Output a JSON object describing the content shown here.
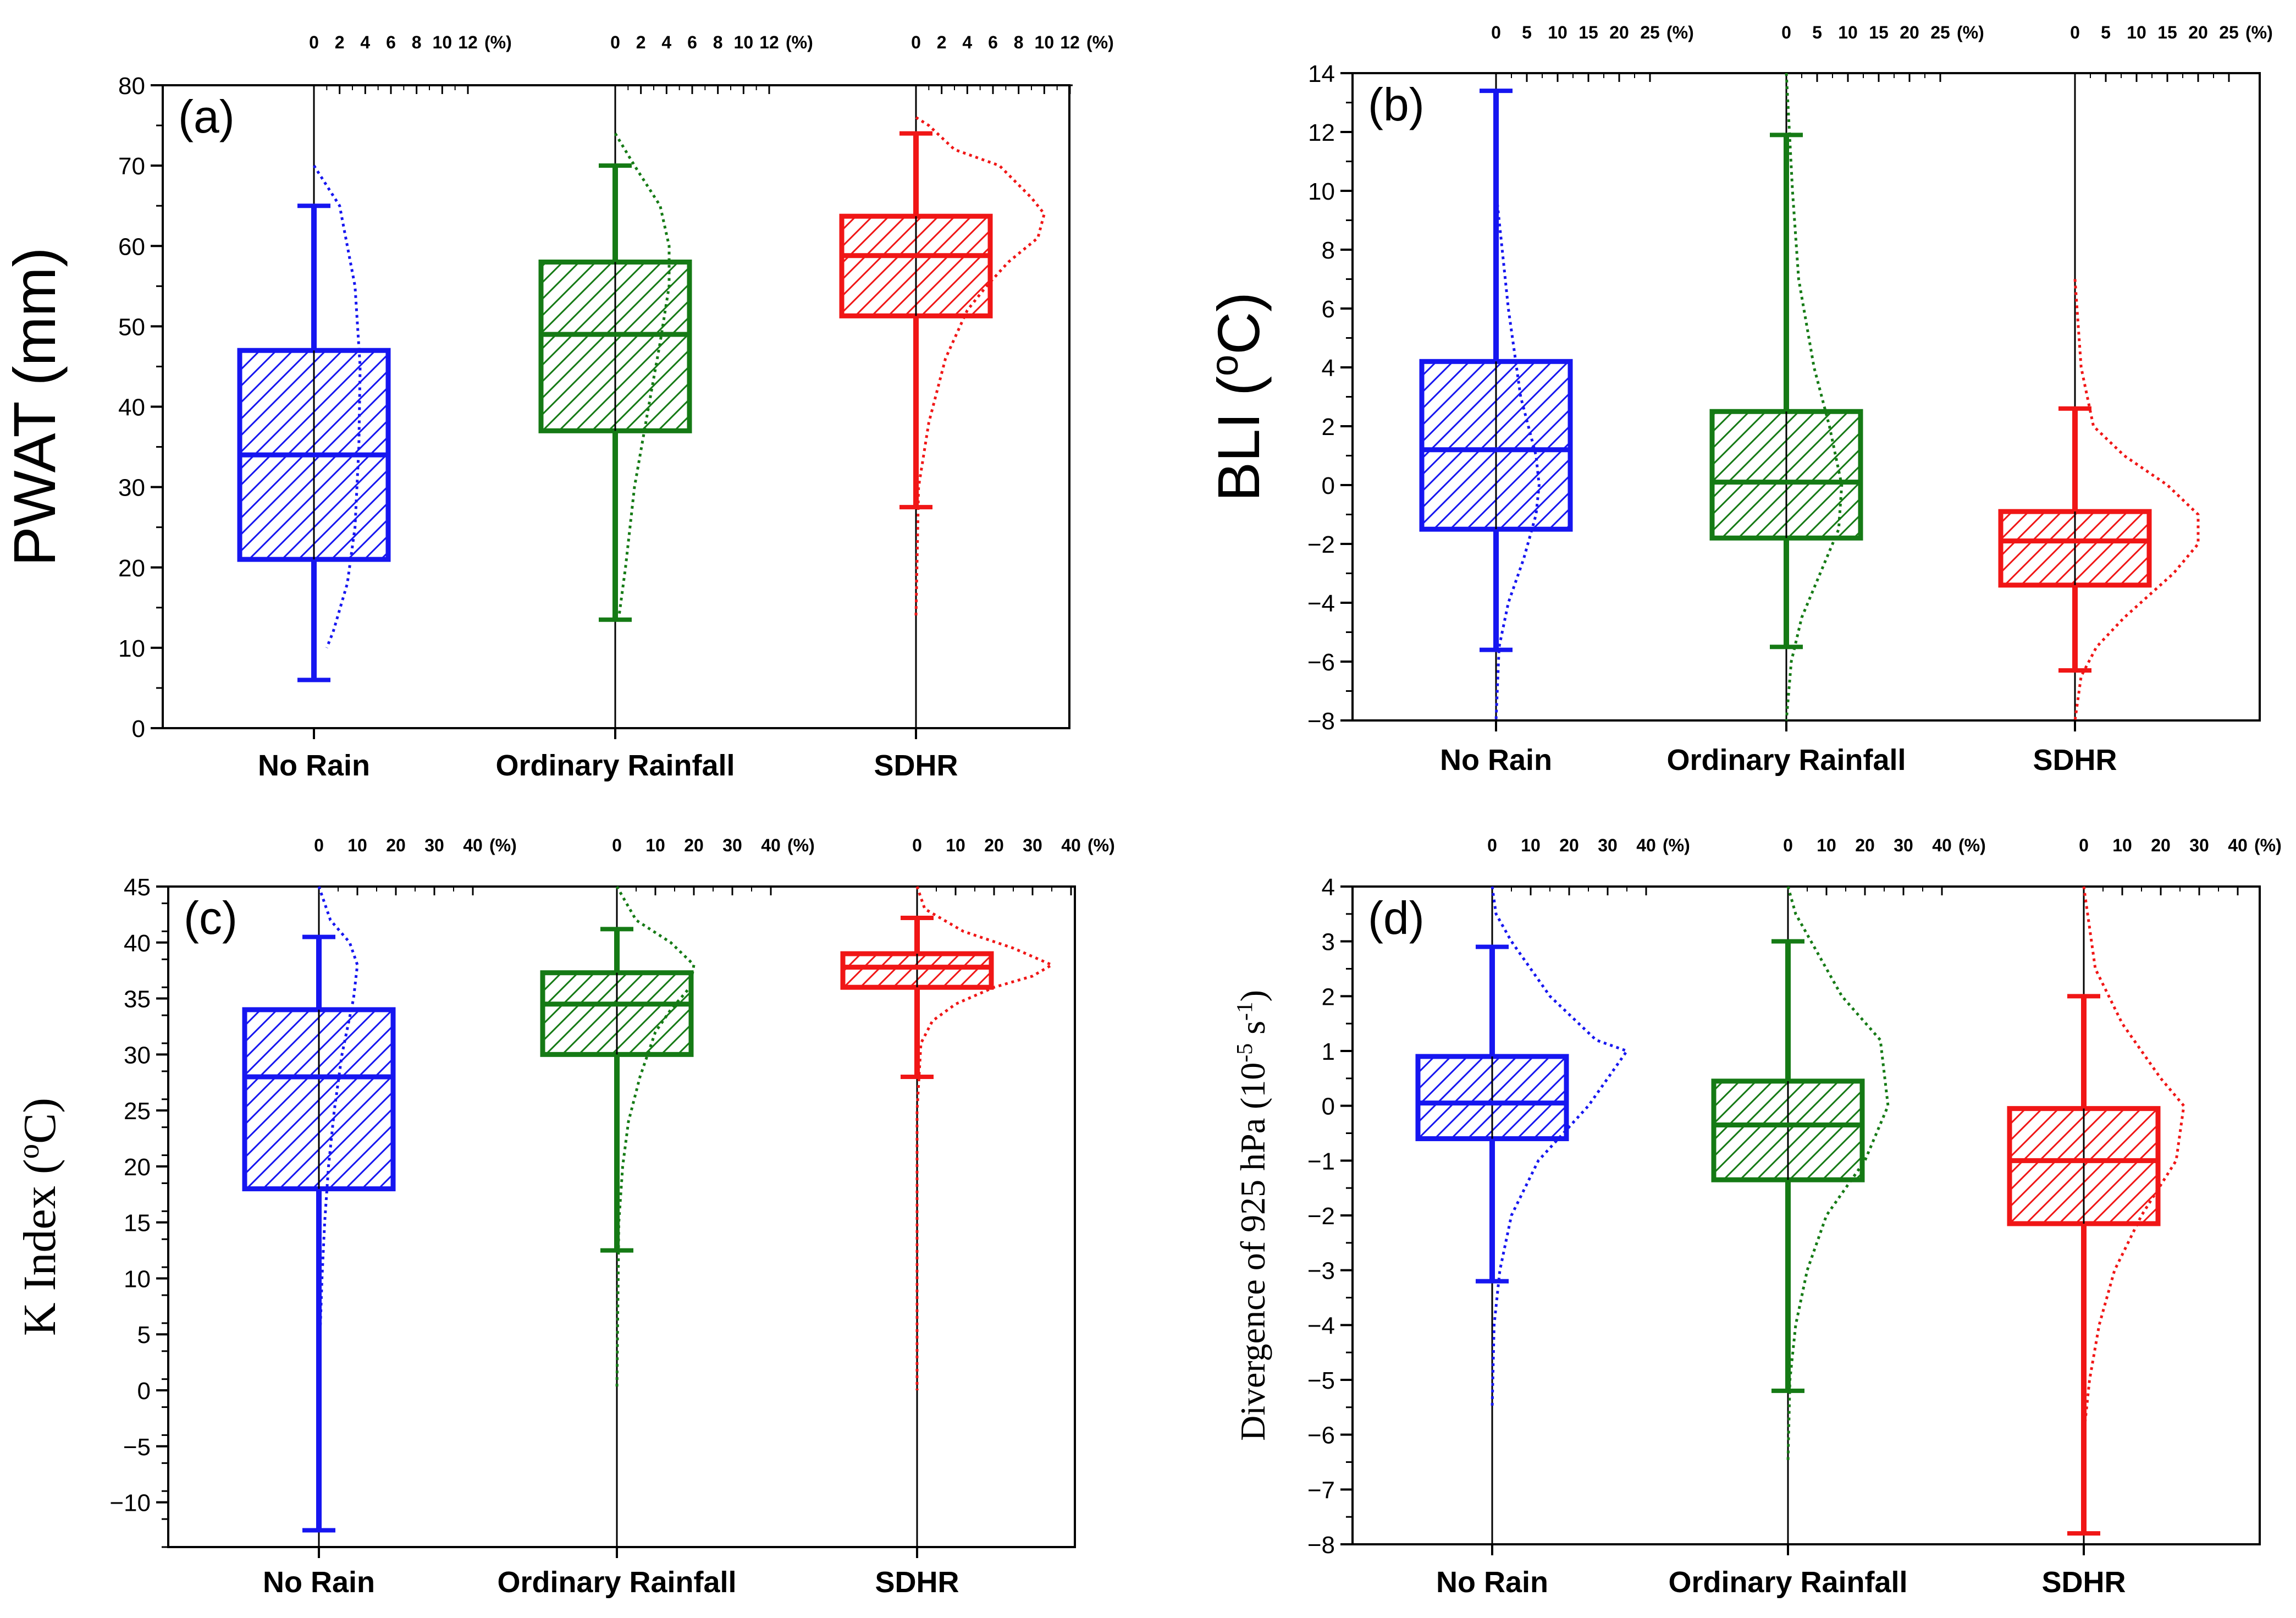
{
  "colors": {
    "No Rain": "#1616f0",
    "Ordinary Rainfall": "#157a15",
    "SDHR": "#f01616"
  },
  "chart_data": [
    {
      "type": "box",
      "panel": "(a)",
      "ylabel": "PWAT (mm)",
      "ylabel_style": "sans",
      "ylim": [
        0,
        80
      ],
      "yticks": [
        0,
        10,
        20,
        30,
        40,
        50,
        60,
        70,
        80
      ],
      "yminor": 5,
      "top_axis": {
        "max": 12,
        "ticks": [
          0,
          2,
          4,
          6,
          8,
          10,
          12
        ],
        "unit": "(%)"
      },
      "categories": [
        "No Rain",
        "Ordinary Rainfall",
        "SDHR"
      ],
      "boxes": [
        {
          "category": "No Rain",
          "whisker_low": 6,
          "q1": 21,
          "median": 34,
          "q3": 47,
          "whisker_high": 65,
          "range_low": 6,
          "range_high": 80
        },
        {
          "category": "Ordinary Rainfall",
          "whisker_low": 13.5,
          "q1": 37,
          "median": 49,
          "q3": 58,
          "whisker_high": 70,
          "range_low": 0,
          "range_high": 80
        },
        {
          "category": "SDHR",
          "whisker_low": 27.5,
          "q1": 51.3,
          "median": 58.8,
          "q3": 63.7,
          "whisker_high": 74,
          "range_low": 0,
          "range_high": 80
        }
      ],
      "distributions": [
        {
          "category": "No Rain",
          "values": [
            0,
            70,
            2,
            65,
            3.2,
            55,
            3.6,
            45,
            3.5,
            35,
            3.2,
            25,
            2.6,
            18,
            1.5,
            12,
            1.0,
            10
          ]
        },
        {
          "category": "Ordinary Rainfall",
          "values": [
            0,
            74,
            1.5,
            70,
            3.5,
            65,
            4.2,
            60,
            4.2,
            55,
            3.5,
            48,
            2.6,
            40,
            1.5,
            30,
            0.8,
            20,
            0.3,
            14
          ]
        },
        {
          "category": "SDHR",
          "values": [
            0,
            76,
            1.0,
            75,
            3.0,
            72,
            6.5,
            70,
            9.0,
            66,
            10.0,
            64,
            9.5,
            61,
            7.2,
            58,
            5.5,
            55,
            4.0,
            52,
            2.3,
            46,
            1.0,
            38,
            0.2,
            30,
            0,
            14
          ]
        }
      ]
    },
    {
      "type": "box",
      "panel": "(b)",
      "ylabel": "BLI (",
      "ylabel_sup": "o",
      "ylabel_tail": "C)",
      "ylabel_style": "sans",
      "ylim": [
        -8,
        14
      ],
      "yticks": [
        -8,
        -6,
        -4,
        -2,
        0,
        2,
        4,
        6,
        8,
        10,
        12,
        14
      ],
      "yminor": 1,
      "top_axis": {
        "max": 25,
        "ticks": [
          0,
          5,
          10,
          15,
          20,
          25
        ],
        "unit": "(%)"
      },
      "categories": [
        "No Rain",
        "Ordinary Rainfall",
        "SDHR"
      ],
      "boxes": [
        {
          "category": "No Rain",
          "whisker_low": -5.6,
          "q1": -1.5,
          "median": 1.2,
          "q3": 4.2,
          "whisker_high": 13.4,
          "range_low": -8,
          "range_high": 14
        },
        {
          "category": "Ordinary Rainfall",
          "whisker_low": -5.5,
          "q1": -1.8,
          "median": 0.1,
          "q3": 2.5,
          "whisker_high": 11.9,
          "range_low": -8,
          "range_high": 14
        },
        {
          "category": "SDHR",
          "whisker_low": -6.3,
          "q1": -3.4,
          "median": -1.9,
          "q3": -0.9,
          "whisker_high": 2.6,
          "range_low": -8,
          "range_high": 14
        }
      ],
      "distributions": [
        {
          "category": "No Rain",
          "values": [
            0,
            10,
            2,
            6,
            4,
            3,
            6.5,
            1,
            7,
            0,
            6.5,
            -1,
            4.5,
            -2.5,
            2,
            -4,
            0.5,
            -5.5,
            0,
            -8
          ]
        },
        {
          "category": "Ordinary Rainfall",
          "values": [
            0,
            14,
            1,
            10,
            2,
            7,
            4.5,
            4,
            7,
            2,
            9,
            0,
            8.5,
            -1.5,
            5.5,
            -3,
            2.5,
            -4.5,
            0.8,
            -6,
            0,
            -8
          ]
        },
        {
          "category": "SDHR",
          "values": [
            0,
            7,
            1,
            4,
            3,
            2,
            8,
            1,
            15,
            0,
            20,
            -1,
            20,
            -2,
            16,
            -3,
            8,
            -4.5,
            3.5,
            -5.5,
            1,
            -6.5,
            0,
            -8
          ]
        }
      ]
    },
    {
      "type": "box",
      "panel": "(c)",
      "ylabel": "K Index (",
      "ylabel_sup": "o",
      "ylabel_tail": "C)",
      "ylabel_style": "serif",
      "ylim": [
        -14,
        45
      ],
      "yticks": [
        -10,
        -5,
        0,
        5,
        10,
        15,
        20,
        25,
        30,
        35,
        40,
        45
      ],
      "yminor": 2.5,
      "top_axis": {
        "max": 40,
        "ticks": [
          0,
          10,
          20,
          30,
          40
        ],
        "unit": "(%)"
      },
      "categories": [
        "No Rain",
        "Ordinary Rainfall",
        "SDHR"
      ],
      "boxes": [
        {
          "category": "No Rain",
          "whisker_low": -12.5,
          "q1": 18,
          "median": 28,
          "q3": 34,
          "whisker_high": 40.5,
          "range_low": -14,
          "range_high": 45
        },
        {
          "category": "Ordinary Rainfall",
          "whisker_low": 12.5,
          "q1": 30,
          "median": 34.5,
          "q3": 37.3,
          "whisker_high": 41.2,
          "range_low": -14,
          "range_high": 45
        },
        {
          "category": "SDHR",
          "whisker_low": 28,
          "q1": 36,
          "median": 37.8,
          "q3": 39,
          "whisker_high": 42.2,
          "range_low": -14,
          "range_high": 45
        }
      ],
      "distributions": [
        {
          "category": "No Rain",
          "values": [
            0,
            45,
            3,
            42,
            8,
            40,
            10,
            38,
            9,
            35,
            6,
            30,
            4,
            25,
            2.5,
            20,
            1.5,
            15,
            0.8,
            10,
            0.3,
            5,
            0,
            0
          ]
        },
        {
          "category": "Ordinary Rainfall",
          "values": [
            0,
            45,
            5,
            42,
            14,
            40,
            20,
            38,
            19,
            36,
            14,
            34,
            10,
            32,
            6,
            28,
            3,
            24,
            1.5,
            20,
            0.5,
            15,
            0,
            0
          ]
        },
        {
          "category": "SDHR",
          "values": [
            0,
            45,
            2,
            43,
            12,
            41,
            25,
            39.5,
            35,
            38,
            30,
            37,
            20,
            36,
            10,
            34.5,
            4,
            33,
            1,
            31,
            0,
            25,
            0,
            0
          ]
        }
      ]
    },
    {
      "type": "box",
      "panel": "(d)",
      "ylabel": "Divergence of 925 hPa (10",
      "ylabel_sup": "-5",
      "ylabel_mid": " s",
      "ylabel_sup2": "-1",
      "ylabel_tail": ")",
      "ylabel_style": "serif-small",
      "ylim": [
        -8,
        4
      ],
      "yticks": [
        -8,
        -7,
        -6,
        -5,
        -4,
        -3,
        -2,
        -1,
        0,
        1,
        2,
        3,
        4
      ],
      "yminor": 0.5,
      "top_axis": {
        "max": 40,
        "ticks": [
          0,
          10,
          20,
          30,
          40
        ],
        "unit": "(%)"
      },
      "categories": [
        "No Rain",
        "Ordinary Rainfall",
        "SDHR"
      ],
      "boxes": [
        {
          "category": "No Rain",
          "whisker_low": -3.2,
          "q1": -0.6,
          "median": 0.05,
          "q3": 0.9,
          "whisker_high": 2.9,
          "range_low": -8,
          "range_high": 4
        },
        {
          "category": "Ordinary Rainfall",
          "whisker_low": -5.2,
          "q1": -1.35,
          "median": -0.35,
          "q3": 0.45,
          "whisker_high": 3,
          "range_low": -8,
          "range_high": 4
        },
        {
          "category": "SDHR",
          "whisker_low": -7.8,
          "q1": -2.15,
          "median": -1,
          "q3": -0.05,
          "whisker_high": 2,
          "range_low": -8,
          "range_high": 4
        }
      ],
      "distributions": [
        {
          "category": "No Rain",
          "values": [
            0,
            4,
            1,
            3.5,
            5,
            3,
            15,
            2,
            27,
            1.2,
            35,
            1,
            25,
            0,
            12,
            -1,
            5,
            -2,
            2,
            -3,
            0.5,
            -4,
            0,
            -5.5
          ]
        },
        {
          "category": "Ordinary Rainfall",
          "values": [
            0,
            4,
            2,
            3.5,
            6,
            3,
            14,
            2,
            24,
            1.2,
            26,
            0,
            20,
            -1,
            10,
            -2,
            5,
            -3,
            2,
            -4,
            0.5,
            -5,
            0,
            -6.5
          ]
        },
        {
          "category": "SDHR",
          "values": [
            0,
            4,
            1,
            3.5,
            3,
            2.5,
            10,
            1.5,
            20,
            0.5,
            26,
            0,
            24,
            -1,
            15,
            -2,
            8,
            -3,
            4,
            -4,
            1.5,
            -5,
            0,
            -6
          ]
        }
      ]
    }
  ]
}
